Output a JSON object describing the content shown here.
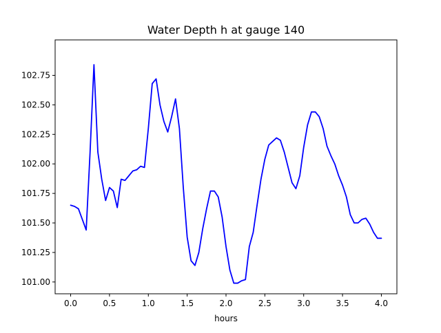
{
  "chart_data": {
    "type": "line",
    "title": "Water Depth h at gauge 140",
    "xlabel": "hours",
    "ylabel": "",
    "xlim": [
      -0.2,
      4.2
    ],
    "ylim": [
      100.9,
      103.05
    ],
    "xticks": [
      0.0,
      0.5,
      1.0,
      1.5,
      2.0,
      2.5,
      3.0,
      3.5,
      4.0
    ],
    "xtick_labels": [
      "0.0",
      "0.5",
      "1.0",
      "1.5",
      "2.0",
      "2.5",
      "3.0",
      "3.5",
      "4.0"
    ],
    "yticks": [
      101.0,
      101.25,
      101.5,
      101.75,
      102.0,
      102.25,
      102.5,
      102.75
    ],
    "ytick_labels": [
      "101.00",
      "101.25",
      "101.50",
      "101.75",
      "102.00",
      "102.25",
      "102.50",
      "102.75"
    ],
    "grid": false,
    "series": [
      {
        "color": "#0000ff",
        "x": [
          0.0,
          0.05,
          0.1,
          0.15,
          0.2,
          0.25,
          0.3,
          0.35,
          0.4,
          0.45,
          0.5,
          0.55,
          0.6,
          0.65,
          0.7,
          0.75,
          0.8,
          0.85,
          0.9,
          0.95,
          1.0,
          1.05,
          1.1,
          1.15,
          1.2,
          1.25,
          1.3,
          1.35,
          1.4,
          1.45,
          1.5,
          1.55,
          1.6,
          1.65,
          1.7,
          1.75,
          1.8,
          1.85,
          1.9,
          1.95,
          2.0,
          2.05,
          2.1,
          2.15,
          2.2,
          2.25,
          2.3,
          2.35,
          2.4,
          2.45,
          2.5,
          2.55,
          2.6,
          2.65,
          2.7,
          2.75,
          2.8,
          2.85,
          2.9,
          2.95,
          3.0,
          3.05,
          3.1,
          3.15,
          3.2,
          3.25,
          3.3,
          3.35,
          3.4,
          3.45,
          3.5,
          3.55,
          3.6,
          3.65,
          3.7,
          3.75,
          3.8,
          3.85,
          3.9,
          3.95,
          4.0
        ],
        "y": [
          101.65,
          101.64,
          101.62,
          101.53,
          101.44,
          102.1,
          102.84,
          102.1,
          101.87,
          101.69,
          101.8,
          101.77,
          101.63,
          101.87,
          101.86,
          101.9,
          101.94,
          101.95,
          101.98,
          101.97,
          102.3,
          102.68,
          102.72,
          102.5,
          102.36,
          102.27,
          102.4,
          102.55,
          102.3,
          101.8,
          101.38,
          101.18,
          101.14,
          101.25,
          101.45,
          101.62,
          101.77,
          101.77,
          101.72,
          101.55,
          101.3,
          101.1,
          100.99,
          100.99,
          101.01,
          101.02,
          101.3,
          101.42,
          101.65,
          101.87,
          102.04,
          102.16,
          102.19,
          102.22,
          102.2,
          102.1,
          101.97,
          101.84,
          101.79,
          101.9,
          102.14,
          102.33,
          102.44,
          102.44,
          102.4,
          102.3,
          102.15,
          102.07,
          102.0,
          101.9,
          101.82,
          101.72,
          101.57,
          101.5,
          101.5,
          101.53,
          101.54,
          101.49,
          101.42,
          101.37,
          101.37
        ]
      }
    ]
  }
}
